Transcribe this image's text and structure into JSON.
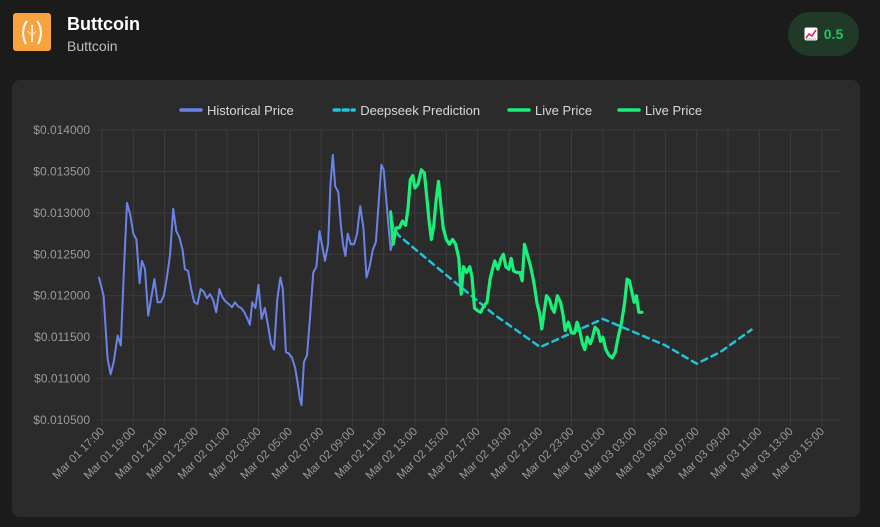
{
  "coin": {
    "name": "Buttcoin",
    "symbol": "Buttcoin"
  },
  "badge": {
    "icon": "chart-up-icon",
    "value": "0.5",
    "color": "#22c55e"
  },
  "chart_data": {
    "type": "line",
    "legend_position": "top",
    "grid": true,
    "y_ticks": [
      "$0.010500",
      "$0.011000",
      "$0.011500",
      "$0.012000",
      "$0.012500",
      "$0.013000",
      "$0.013500",
      "$0.014000"
    ],
    "ylim": [
      0.0105,
      0.014
    ],
    "x_ticks": [
      "Mar 01 17:00",
      "Mar 01 19:00",
      "Mar 01 21:00",
      "Mar 01 23:00",
      "Mar 02 01:00",
      "Mar 02 03:00",
      "Mar 02 05:00",
      "Mar 02 07:00",
      "Mar 02 09:00",
      "Mar 02 11:00",
      "Mar 02 13:00",
      "Mar 02 15:00",
      "Mar 02 17:00",
      "Mar 02 19:00",
      "Mar 02 21:00",
      "Mar 02 23:00",
      "Mar 03 01:00",
      "Mar 03 03:00",
      "Mar 03 05:00",
      "Mar 03 07:00",
      "Mar 03 09:00",
      "Mar 03 11:00",
      "Mar 03 13:00",
      "Mar 03 15:00"
    ],
    "x_unit_hours_from": "Mar 01 17:00",
    "series": [
      {
        "name": "Historical Price",
        "color": "#6b83e6",
        "style": "solid",
        "points": [
          [
            -0.2,
            0.01222
          ],
          [
            0.1,
            0.012
          ],
          [
            0.35,
            0.01125
          ],
          [
            0.55,
            0.01105
          ],
          [
            0.75,
            0.0112
          ],
          [
            1.0,
            0.01152
          ],
          [
            1.2,
            0.0114
          ],
          [
            1.4,
            0.0123
          ],
          [
            1.6,
            0.01312
          ],
          [
            1.8,
            0.01298
          ],
          [
            2.0,
            0.01275
          ],
          [
            2.2,
            0.01268
          ],
          [
            2.4,
            0.01215
          ],
          [
            2.55,
            0.01242
          ],
          [
            2.75,
            0.01232
          ],
          [
            2.95,
            0.01176
          ],
          [
            3.15,
            0.01198
          ],
          [
            3.35,
            0.0122
          ],
          [
            3.55,
            0.01192
          ],
          [
            3.75,
            0.01192
          ],
          [
            3.95,
            0.012
          ],
          [
            4.15,
            0.01222
          ],
          [
            4.35,
            0.0125
          ],
          [
            4.55,
            0.01305
          ],
          [
            4.75,
            0.01278
          ],
          [
            4.95,
            0.0127
          ],
          [
            5.15,
            0.01255
          ],
          [
            5.3,
            0.01232
          ],
          [
            5.5,
            0.0123
          ],
          [
            5.7,
            0.01208
          ],
          [
            5.9,
            0.01192
          ],
          [
            6.1,
            0.0119
          ],
          [
            6.3,
            0.01208
          ],
          [
            6.5,
            0.01205
          ],
          [
            6.7,
            0.01197
          ],
          [
            6.9,
            0.01202
          ],
          [
            7.1,
            0.01195
          ],
          [
            7.3,
            0.0118
          ],
          [
            7.5,
            0.01208
          ],
          [
            7.7,
            0.01198
          ],
          [
            7.9,
            0.01193
          ],
          [
            8.1,
            0.0119
          ],
          [
            8.3,
            0.01186
          ],
          [
            8.5,
            0.01192
          ],
          [
            8.7,
            0.01187
          ],
          [
            8.9,
            0.01185
          ],
          [
            9.1,
            0.0118
          ],
          [
            9.3,
            0.01172
          ],
          [
            9.45,
            0.01165
          ],
          [
            9.6,
            0.01192
          ],
          [
            9.8,
            0.01185
          ],
          [
            10.0,
            0.01213
          ],
          [
            10.2,
            0.01172
          ],
          [
            10.4,
            0.01185
          ],
          [
            10.6,
            0.01165
          ],
          [
            10.8,
            0.01142
          ],
          [
            11.0,
            0.01135
          ],
          [
            11.2,
            0.01196
          ],
          [
            11.4,
            0.01222
          ],
          [
            11.55,
            0.01208
          ],
          [
            11.75,
            0.01132
          ],
          [
            11.95,
            0.0113
          ],
          [
            12.15,
            0.01125
          ],
          [
            12.35,
            0.01112
          ],
          [
            12.5,
            0.01095
          ],
          [
            12.65,
            0.01075
          ],
          [
            12.75,
            0.01068
          ],
          [
            12.9,
            0.0112
          ],
          [
            13.1,
            0.01128
          ],
          [
            13.3,
            0.01175
          ],
          [
            13.5,
            0.01228
          ],
          [
            13.7,
            0.01235
          ],
          [
            13.9,
            0.01278
          ],
          [
            14.05,
            0.01262
          ],
          [
            14.25,
            0.01242
          ],
          [
            14.45,
            0.01262
          ],
          [
            14.6,
            0.01335
          ],
          [
            14.75,
            0.0137
          ],
          [
            14.9,
            0.01332
          ],
          [
            15.1,
            0.01325
          ],
          [
            15.25,
            0.01287
          ],
          [
            15.4,
            0.01262
          ],
          [
            15.55,
            0.01248
          ],
          [
            15.7,
            0.01275
          ],
          [
            15.9,
            0.01262
          ],
          [
            16.1,
            0.01262
          ],
          [
            16.3,
            0.01275
          ],
          [
            16.5,
            0.01308
          ],
          [
            16.7,
            0.01282
          ],
          [
            16.9,
            0.01222
          ],
          [
            17.1,
            0.01235
          ],
          [
            17.3,
            0.01255
          ],
          [
            17.5,
            0.01265
          ],
          [
            17.7,
            0.01318
          ],
          [
            17.85,
            0.01358
          ],
          [
            18.0,
            0.01352
          ],
          [
            18.15,
            0.0132
          ],
          [
            18.3,
            0.01285
          ],
          [
            18.45,
            0.01255
          ],
          [
            18.6,
            0.01268
          ],
          [
            18.8,
            0.0128
          ]
        ]
      },
      {
        "name": "Deepseek Prediction",
        "color": "#22c3d6",
        "style": "dashed",
        "points": [
          [
            18.45,
            0.01302
          ],
          [
            18.6,
            0.01282
          ],
          [
            19.0,
            0.01272
          ],
          [
            22.0,
            0.01225
          ],
          [
            25.0,
            0.01178
          ],
          [
            28.0,
            0.01138
          ],
          [
            32.0,
            0.01172
          ],
          [
            36.0,
            0.0114
          ],
          [
            38.0,
            0.01118
          ],
          [
            39.5,
            0.01132
          ],
          [
            41.5,
            0.01159
          ]
        ]
      },
      {
        "name": "Live Price",
        "color": "#19f07a",
        "style": "solid",
        "points": [
          [
            18.45,
            0.013
          ],
          [
            18.6,
            0.01262
          ],
          [
            18.8,
            0.01282
          ],
          [
            19.0,
            0.01282
          ],
          [
            19.2,
            0.0129
          ],
          [
            19.4,
            0.01285
          ],
          [
            19.55,
            0.01305
          ],
          [
            19.7,
            0.0134
          ],
          [
            19.85,
            0.01345
          ],
          [
            20.0,
            0.0133
          ],
          [
            20.2,
            0.01335
          ],
          [
            20.4,
            0.01352
          ],
          [
            20.6,
            0.01348
          ],
          [
            20.75,
            0.0132
          ],
          [
            20.9,
            0.0129
          ],
          [
            21.05,
            0.01268
          ],
          [
            21.2,
            0.01285
          ],
          [
            21.35,
            0.01315
          ],
          [
            21.5,
            0.01338
          ],
          [
            21.65,
            0.0131
          ],
          [
            21.8,
            0.01282
          ],
          [
            22.0,
            0.01268
          ],
          [
            22.2,
            0.01262
          ],
          [
            22.4,
            0.01268
          ],
          [
            22.6,
            0.01262
          ],
          [
            22.8,
            0.01245
          ],
          [
            22.95,
            0.01202
          ],
          [
            23.1,
            0.01235
          ],
          [
            23.3,
            0.01228
          ],
          [
            23.5,
            0.01235
          ],
          [
            23.65,
            0.01222
          ],
          [
            23.8,
            0.01185
          ],
          [
            24.0,
            0.01182
          ],
          [
            24.2,
            0.0118
          ],
          [
            24.4,
            0.01188
          ],
          [
            24.6,
            0.01192
          ],
          [
            24.8,
            0.0122
          ],
          [
            24.95,
            0.01232
          ],
          [
            25.1,
            0.01242
          ],
          [
            25.3,
            0.01232
          ],
          [
            25.5,
            0.01245
          ],
          [
            25.65,
            0.0125
          ],
          [
            25.8,
            0.01235
          ],
          [
            26.0,
            0.01232
          ],
          [
            26.15,
            0.01245
          ],
          [
            26.3,
            0.0123
          ],
          [
            26.5,
            0.01228
          ],
          [
            26.7,
            0.01228
          ],
          [
            26.85,
            0.01218
          ],
          [
            27.0,
            0.01262
          ],
          [
            27.2,
            0.01248
          ],
          [
            27.35,
            0.01238
          ],
          [
            27.5,
            0.01225
          ],
          [
            27.65,
            0.0121
          ],
          [
            27.8,
            0.0119
          ],
          [
            27.95,
            0.0118
          ],
          [
            28.1,
            0.0116
          ],
          [
            28.25,
            0.0118
          ],
          [
            28.4,
            0.012
          ],
          [
            28.6,
            0.01195
          ],
          [
            28.75,
            0.01185
          ],
          [
            28.9,
            0.0118
          ],
          [
            29.1,
            0.012
          ],
          [
            29.3,
            0.01192
          ],
          [
            29.45,
            0.01178
          ],
          [
            29.6,
            0.01158
          ],
          [
            29.8,
            0.01168
          ],
          [
            30.0,
            0.01155
          ],
          [
            30.2,
            0.01155
          ],
          [
            30.35,
            0.01168
          ],
          [
            30.5,
            0.0116
          ],
          [
            30.7,
            0.01142
          ],
          [
            30.85,
            0.01135
          ],
          [
            31.0,
            0.0115
          ],
          [
            31.2,
            0.01142
          ],
          [
            31.35,
            0.0115
          ],
          [
            31.5,
            0.01162
          ],
          [
            31.7,
            0.01158
          ],
          [
            31.85,
            0.01145
          ],
          [
            32.0,
            0.0115
          ],
          [
            32.2,
            0.01135
          ],
          [
            32.4,
            0.01128
          ],
          [
            32.6,
            0.01125
          ],
          [
            32.8,
            0.01132
          ],
          [
            33.0,
            0.01152
          ],
          [
            33.2,
            0.01168
          ],
          [
            33.4,
            0.01192
          ],
          [
            33.55,
            0.0122
          ],
          [
            33.7,
            0.01218
          ],
          [
            33.85,
            0.01205
          ],
          [
            34.0,
            0.01192
          ],
          [
            34.15,
            0.012
          ],
          [
            34.3,
            0.0118
          ],
          [
            34.5,
            0.0118
          ]
        ]
      },
      {
        "name": "Live Price",
        "color": "#19f07a",
        "style": "solid",
        "points": []
      }
    ]
  }
}
